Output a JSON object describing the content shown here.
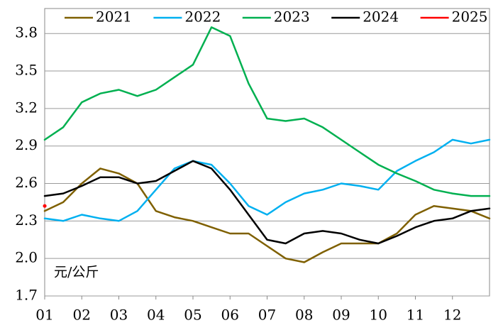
{
  "chart_data": {
    "type": "line",
    "annotation": "元/公斤",
    "x": [
      1,
      1.5,
      2,
      2.5,
      3,
      3.5,
      4,
      4.5,
      5,
      5.5,
      6,
      6.5,
      7,
      7.5,
      8,
      8.5,
      9,
      9.5,
      10,
      10.5,
      11,
      11.5,
      12,
      12.5,
      13
    ],
    "xlim": [
      1,
      13
    ],
    "xticks": [
      {
        "value": 1,
        "label": "01"
      },
      {
        "value": 2,
        "label": "02"
      },
      {
        "value": 3,
        "label": "03"
      },
      {
        "value": 4,
        "label": "04"
      },
      {
        "value": 5,
        "label": "05"
      },
      {
        "value": 6,
        "label": "06"
      },
      {
        "value": 7,
        "label": "07"
      },
      {
        "value": 8,
        "label": "08"
      },
      {
        "value": 9,
        "label": "09"
      },
      {
        "value": 10,
        "label": "10"
      },
      {
        "value": 11,
        "label": "11"
      },
      {
        "value": 12,
        "label": "12"
      }
    ],
    "ylim": [
      1.7,
      4.0
    ],
    "yticks": [
      1.7,
      {
        "value": 2,
        "label": "2.0"
      },
      2.3,
      2.6,
      2.9,
      3.2,
      3.5,
      3.8
    ],
    "grid": true,
    "legend": "top",
    "series": [
      {
        "name": "2021",
        "color": "#7f6000",
        "values": [
          2.38,
          2.45,
          2.6,
          2.72,
          2.68,
          2.6,
          2.38,
          2.33,
          2.3,
          2.25,
          2.2,
          2.2,
          2.1,
          2.0,
          1.97,
          2.05,
          2.12,
          2.12,
          2.12,
          2.2,
          2.35,
          2.42,
          2.4,
          2.38,
          2.32
        ]
      },
      {
        "name": "2022",
        "color": "#00b0f0",
        "values": [
          2.32,
          2.3,
          2.35,
          2.32,
          2.3,
          2.38,
          2.55,
          2.72,
          2.78,
          2.75,
          2.6,
          2.42,
          2.35,
          2.45,
          2.52,
          2.55,
          2.6,
          2.58,
          2.55,
          2.7,
          2.78,
          2.85,
          2.95,
          2.92,
          2.95
        ]
      },
      {
        "name": "2023",
        "color": "#00b050",
        "values": [
          2.95,
          3.05,
          3.25,
          3.32,
          3.35,
          3.3,
          3.35,
          3.45,
          3.55,
          3.85,
          3.78,
          3.4,
          3.12,
          3.1,
          3.12,
          3.05,
          2.95,
          2.85,
          2.75,
          2.68,
          2.62,
          2.55,
          2.52,
          2.5,
          2.5
        ]
      },
      {
        "name": "2024",
        "color": "#000000",
        "values": [
          2.5,
          2.52,
          2.58,
          2.65,
          2.65,
          2.6,
          2.62,
          2.7,
          2.78,
          2.72,
          2.55,
          2.35,
          2.15,
          2.12,
          2.2,
          2.22,
          2.2,
          2.15,
          2.12,
          2.18,
          2.25,
          2.3,
          2.32,
          2.38,
          2.4
        ]
      },
      {
        "name": "2025",
        "color": "#ff0000",
        "values": [
          2.42,
          null,
          null,
          null,
          null,
          null,
          null,
          null,
          null,
          null,
          null,
          null,
          null,
          null,
          null,
          null,
          null,
          null,
          null,
          null,
          null,
          null,
          null,
          null,
          null
        ]
      }
    ]
  }
}
